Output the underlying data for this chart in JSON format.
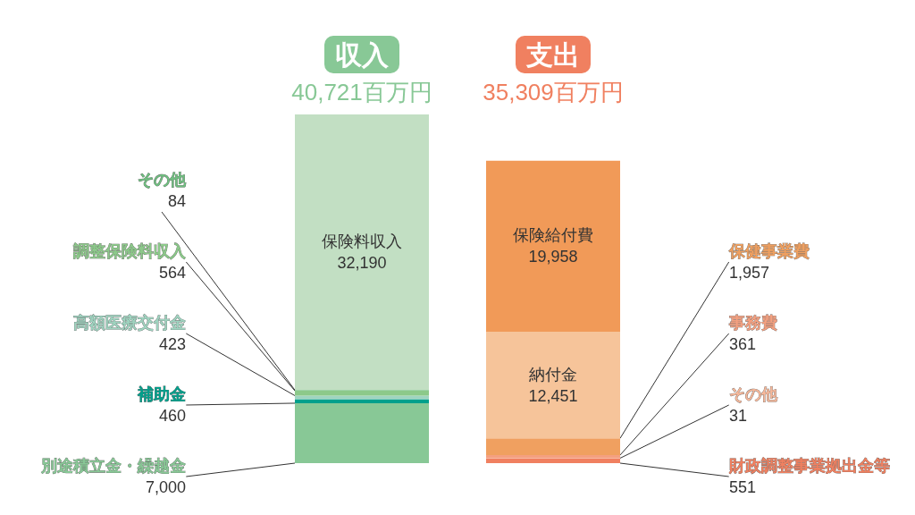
{
  "chart_data": {
    "type": "bar",
    "stacked": true,
    "legend": false,
    "categories": [
      "収入",
      "支出"
    ],
    "totals": [
      "40,721百万円",
      "35,309百万円"
    ],
    "series": [
      {
        "name": "別途積立金・繰越金",
        "color": "#88c896",
        "values": [
          7000,
          null
        ],
        "value_labels": [
          "7,000",
          null
        ]
      },
      {
        "name": "補助金",
        "color": "#00a08c",
        "values": [
          460,
          null
        ],
        "value_labels": [
          "460",
          null
        ]
      },
      {
        "name": "高額医療交付金",
        "color": "#9fd4c0",
        "values": [
          423,
          null
        ],
        "value_labels": [
          "423",
          null
        ]
      },
      {
        "name": "調整保険料収入",
        "color": "#8cc98a",
        "values": [
          564,
          null
        ],
        "value_labels": [
          "564",
          null
        ]
      },
      {
        "name": "その他",
        "color": "#6fbf80",
        "values": [
          84,
          null
        ],
        "value_labels": [
          "84",
          null
        ]
      },
      {
        "name": "保険料収入",
        "color": "#c2dfc3",
        "values": [
          32190,
          null
        ],
        "value_labels": [
          "32,190",
          null
        ]
      },
      {
        "name": "財政調整事業拠出金等",
        "color": "#f08060",
        "values": [
          null,
          551
        ],
        "value_labels": [
          null,
          "551"
        ]
      },
      {
        "name": "その他",
        "color": "#f7b89a",
        "values": [
          null,
          31
        ],
        "value_labels": [
          null,
          "31"
        ]
      },
      {
        "name": "事務費",
        "color": "#f4a080",
        "values": [
          null,
          361
        ],
        "value_labels": [
          null,
          "361"
        ]
      },
      {
        "name": "保健事業費",
        "color": "#f0a060",
        "values": [
          null,
          1957
        ],
        "value_labels": [
          null,
          "1,957"
        ]
      },
      {
        "name": "納付金",
        "color": "#f6c49a",
        "values": [
          null,
          12451
        ],
        "value_labels": [
          null,
          "12,451"
        ]
      },
      {
        "name": "保険給付費",
        "color": "#f19a58",
        "values": [
          null,
          19958
        ],
        "value_labels": [
          null,
          "19,958"
        ]
      }
    ]
  }
}
